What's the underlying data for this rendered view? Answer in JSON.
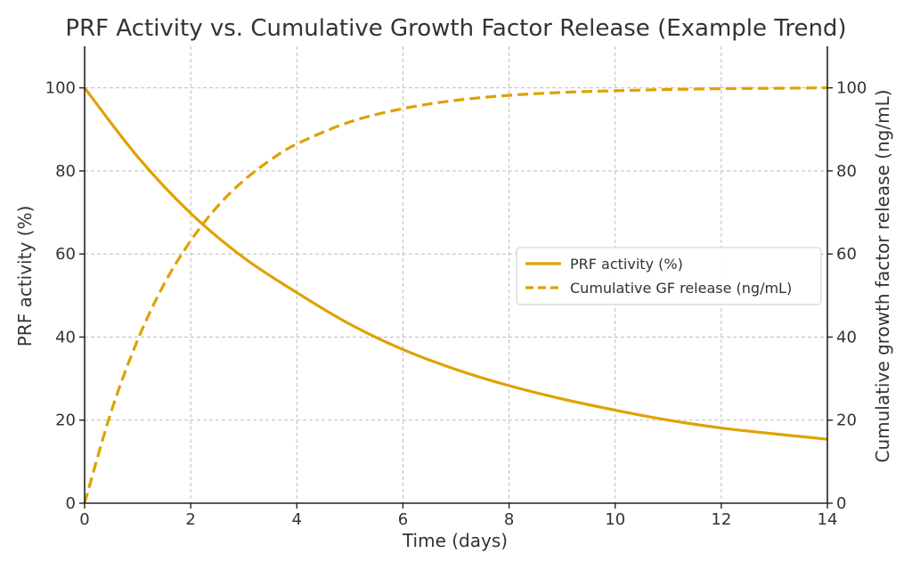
{
  "chart_data": {
    "type": "line",
    "title": "PRF Activity vs. Cumulative Growth Factor Release (Example Trend)",
    "xlabel": "Time (days)",
    "ylabel_left": "PRF activity (%)",
    "ylabel_right": "Cumulative growth factor release (ng/mL)",
    "xlim": [
      0,
      14
    ],
    "ylim_left": [
      0,
      110
    ],
    "ylim_right": [
      0,
      110
    ],
    "x_ticks": [
      0,
      2,
      4,
      6,
      8,
      10,
      12,
      14
    ],
    "y_ticks_left": [
      0,
      20,
      40,
      60,
      80,
      100
    ],
    "y_ticks_right": [
      0,
      20,
      40,
      60,
      80,
      100
    ],
    "grid": true,
    "legend_position": "center-right",
    "series": [
      {
        "name": "PRF activity (%)",
        "axis": "left",
        "style": "solid",
        "color": "#E0A100",
        "x": [
          0,
          1,
          2,
          3,
          4,
          5,
          6,
          7,
          8,
          9,
          10,
          11,
          12,
          13,
          14
        ],
        "values": [
          100,
          83.4,
          69.8,
          59.1,
          50.7,
          43.1,
          37.0,
          32.2,
          28.3,
          25.1,
          22.4,
          20.0,
          18.1,
          16.7,
          15.4
        ]
      },
      {
        "name": "Cumulative GF release (ng/mL)",
        "axis": "right",
        "style": "dashed",
        "color": "#E0A100",
        "x": [
          0,
          0.5,
          1,
          1.5,
          2,
          2.5,
          3,
          3.5,
          4,
          5,
          6,
          7,
          8,
          9,
          10,
          11,
          12,
          13,
          14
        ],
        "values": [
          0,
          22,
          39.3,
          52.8,
          63.2,
          71.4,
          77.7,
          82.6,
          86.5,
          91.8,
          95.0,
          97.0,
          98.2,
          98.9,
          99.3,
          99.6,
          99.8,
          99.9,
          100
        ]
      }
    ]
  }
}
